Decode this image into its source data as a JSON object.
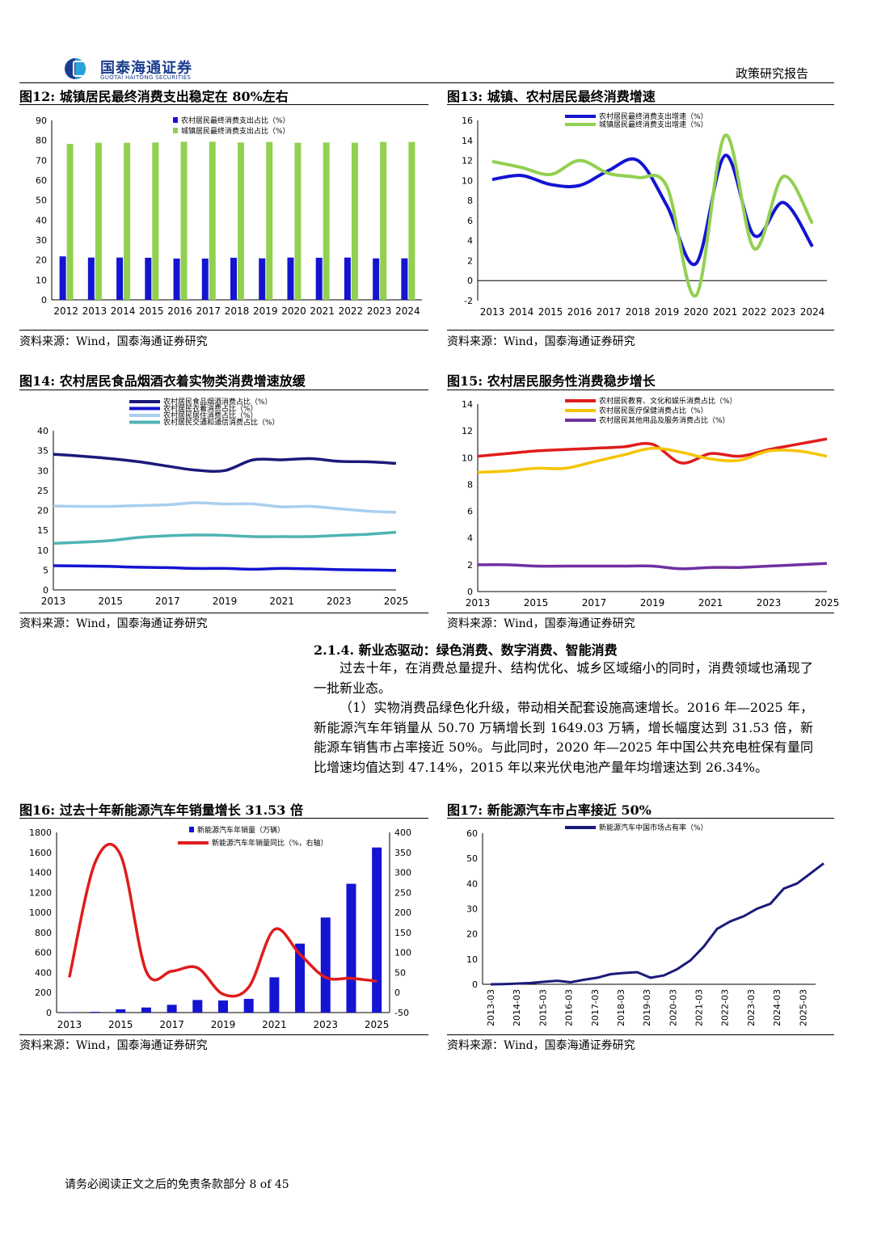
{
  "header": {
    "logo_cn": "国泰海通证券",
    "logo_en": "GUOTAI HAITONG SECURITIES",
    "report_type": "政策研究报告"
  },
  "footer": {
    "text": "请务必阅读正文之后的免责条款部分 8 of 45"
  },
  "figures": {
    "fig12": {
      "title": "图12:  城镇居民最终消费支出稳定在 80%左右",
      "source": "资料来源：Wind，国泰海通证券研究"
    },
    "fig13": {
      "title": "图13:  城镇、农村居民最终消费增速",
      "source": "资料来源：Wind，国泰海通证券研究"
    },
    "fig14": {
      "title": "图14:  农村居民食品烟酒衣着实物类消费增速放缓",
      "source": "资料来源：Wind，国泰海通证券研究"
    },
    "fig15": {
      "title": "图15:  农村居民服务性消费稳步增长",
      "source": "资料来源：Wind，国泰海通证券研究"
    },
    "fig16": {
      "title": "图16:  过去十年新能源汽车年销量增长 31.53 倍",
      "source": "资料来源：Wind，国泰海通证券研究"
    },
    "fig17": {
      "title": "图17:  新能源汽车市占率接近 50%",
      "source": "资料来源：Wind，国泰海通证券研究"
    }
  },
  "section": {
    "heading": "2.1.4.   新业态驱动：绿色消费、数字消费、智能消费",
    "para1": "过去十年，在消费总量提升、结构优化、城乡区域缩小的同时，消费领域也涌现了一批新业态。",
    "para2": "（1）实物消费品绿色化升级，带动相关配套设施高速增长。2016 年—2025 年，新能源汽车年销量从 50.70 万辆增长到 1649.03 万辆，增长幅度达到 31.53 倍，新能源车销售市占率接近 50%。与此同时，2020 年—2025 年中国公共充电桩保有量同比增速均值达到 47.14%，2015 年以来光伏电池产量年均增速达到 26.34%。"
  },
  "colors": {
    "navy": "#1a1a7a",
    "blue": "#1414d2",
    "green": "#92d050",
    "light_blue": "#a9cfee",
    "teal": "#4fb3b3",
    "red": "#e01c1c",
    "yellow": "#f5c400",
    "purple": "#7030a0"
  },
  "chart_data": [
    {
      "id": "fig12",
      "type": "bar",
      "categories": [
        "2012",
        "2013",
        "2014",
        "2015",
        "2016",
        "2017",
        "2018",
        "2019",
        "2020",
        "2021",
        "2022",
        "2023",
        "2024"
      ],
      "series": [
        {
          "name": "农村居民最终消费支出占比（%）",
          "values": [
            21.8,
            21.2,
            21.2,
            21.1,
            20.7,
            20.7,
            21.1,
            20.8,
            21.2,
            21.1,
            21.2,
            20.8,
            20.8
          ]
        },
        {
          "name": "城镇居民最终消费支出占比（%）",
          "values": [
            78.2,
            78.8,
            78.8,
            78.9,
            79.3,
            79.3,
            78.9,
            79.2,
            78.8,
            78.9,
            78.8,
            79.2,
            79.2
          ]
        }
      ],
      "ylim": [
        0,
        90
      ],
      "yticks": [
        0,
        10,
        20,
        30,
        40,
        50,
        60,
        70,
        80,
        90
      ],
      "legend": "top-center"
    },
    {
      "id": "fig13",
      "type": "line",
      "x": [
        "2013",
        "2014",
        "2015",
        "2016",
        "2017",
        "2018",
        "2019",
        "2020",
        "2021",
        "2022",
        "2023",
        "2024"
      ],
      "series": [
        {
          "name": "农村居民最终消费支出增速（%）",
          "values": [
            10.1,
            10.5,
            9.6,
            9.5,
            11.0,
            12.0,
            7.5,
            1.7,
            12.5,
            4.5,
            7.8,
            3.4
          ]
        },
        {
          "name": "城镇居民最终消费支出增速（%）",
          "values": [
            11.9,
            11.3,
            10.6,
            12.0,
            10.7,
            10.3,
            9.4,
            -1.5,
            14.5,
            3.2,
            10.4,
            5.7
          ]
        }
      ],
      "ylim": [
        -2,
        16
      ],
      "yticks": [
        -2,
        0,
        2,
        4,
        6,
        8,
        10,
        12,
        14,
        16
      ],
      "legend": "top-center"
    },
    {
      "id": "fig14",
      "type": "line",
      "x": [
        "2013",
        "2014",
        "2015",
        "2016",
        "2017",
        "2018",
        "2019",
        "2020",
        "2021",
        "2022",
        "2023",
        "2024",
        "2025"
      ],
      "xticks": [
        "2013",
        "2015",
        "2017",
        "2019",
        "2021",
        "2023",
        "2025"
      ],
      "series": [
        {
          "name": "农村居民食品烟酒消费占比（%）",
          "values": [
            34.1,
            33.6,
            33.0,
            32.2,
            31.1,
            30.1,
            30.0,
            32.7,
            32.7,
            33.0,
            32.3,
            32.2,
            31.8
          ]
        },
        {
          "name": "农村居民衣着消费占比（%）",
          "values": [
            6.1,
            6.0,
            5.9,
            5.7,
            5.6,
            5.4,
            5.4,
            5.2,
            5.4,
            5.3,
            5.1,
            5.0,
            4.9
          ]
        },
        {
          "name": "农村居民居住消费占比（%）",
          "values": [
            21.1,
            21.0,
            21.0,
            21.2,
            21.4,
            21.9,
            21.6,
            21.6,
            20.9,
            21.0,
            20.4,
            19.8,
            19.5
          ]
        },
        {
          "name": "农村居民交通和通信消费占比（%）",
          "values": [
            11.7,
            12.0,
            12.4,
            13.2,
            13.6,
            13.8,
            13.7,
            13.4,
            13.4,
            13.4,
            13.7,
            14.0,
            14.5
          ]
        }
      ],
      "ylim": [
        0,
        40
      ],
      "yticks": [
        0,
        5,
        10,
        15,
        20,
        25,
        30,
        35,
        40
      ],
      "legend": "top-center"
    },
    {
      "id": "fig15",
      "type": "line",
      "x": [
        "2013",
        "2014",
        "2015",
        "2016",
        "2017",
        "2018",
        "2019",
        "2020",
        "2021",
        "2022",
        "2023",
        "2024",
        "2025"
      ],
      "xticks": [
        "2013",
        "2015",
        "2017",
        "2019",
        "2021",
        "2023",
        "2025"
      ],
      "series": [
        {
          "name": "农村居民教育、文化和娱乐消费占比（%）",
          "values": [
            10.1,
            10.3,
            10.5,
            10.6,
            10.7,
            10.8,
            11.0,
            9.6,
            10.3,
            10.1,
            10.6,
            11.0,
            11.4
          ]
        },
        {
          "name": "农村居民医疗保健消费占比（%）",
          "values": [
            8.9,
            9.0,
            9.2,
            9.2,
            9.7,
            10.2,
            10.7,
            10.4,
            9.9,
            9.8,
            10.5,
            10.5,
            10.1
          ]
        },
        {
          "name": "农村居民其他用品及服务消费占比（%）",
          "values": [
            2.0,
            2.0,
            1.9,
            1.9,
            1.9,
            1.9,
            1.9,
            1.7,
            1.8,
            1.8,
            1.9,
            2.0,
            2.1
          ]
        }
      ],
      "ylim": [
        0,
        14
      ],
      "yticks": [
        0,
        2,
        4,
        6,
        8,
        10,
        12,
        14
      ],
      "legend": "top-center"
    },
    {
      "id": "fig16",
      "type": "bar",
      "categories": [
        "2013",
        "2014",
        "2015",
        "2016",
        "2017",
        "2018",
        "2019",
        "2020",
        "2021",
        "2022",
        "2023",
        "2024",
        "2025"
      ],
      "xticks": [
        "2013",
        "2015",
        "2017",
        "2019",
        "2021",
        "2023",
        "2025"
      ],
      "series": [
        {
          "name": "新能源汽车年销量（万辆）",
          "type": "bar",
          "axis": "left",
          "values": [
            1.8,
            7.5,
            33.1,
            50.7,
            77.7,
            125.6,
            120.6,
            136.7,
            352.1,
            688.7,
            949.5,
            1286.6,
            1649.0
          ]
        },
        {
          "name": "新能源汽车年销量同比（%，右轴）",
          "type": "line",
          "axis": "right",
          "values": [
            37.9,
            324.0,
            343.0,
            53.0,
            53.3,
            61.7,
            -4.0,
            13.3,
            157.5,
            95.6,
            37.9,
            35.5,
            28.2
          ]
        }
      ],
      "ylim": [
        0,
        1800
      ],
      "yticks": [
        0,
        200,
        400,
        600,
        800,
        1000,
        1200,
        1400,
        1600,
        1800
      ],
      "y2lim": [
        -50,
        400
      ],
      "y2ticks": [
        -50,
        0,
        50,
        100,
        150,
        200,
        250,
        300,
        350,
        400
      ],
      "legend": "top-center"
    },
    {
      "id": "fig17",
      "type": "line",
      "xticks": [
        "2013-03",
        "2014-03",
        "2015-03",
        "2016-03",
        "2017-03",
        "2018-03",
        "2019-03",
        "2020-03",
        "2021-03",
        "2022-03",
        "2023-03",
        "2024-03",
        "2025-03"
      ],
      "series": [
        {
          "name": "新能源汽车中国市场占有率（%）",
          "values": [
            0.0,
            0.1,
            0.3,
            0.5,
            1.0,
            1.4,
            0.8,
            1.8,
            2.6,
            4.0,
            4.5,
            4.8,
            2.6,
            3.5,
            6.0,
            9.5,
            15.0,
            22.0,
            25.0,
            27.0,
            30.0,
            32.0,
            38.0,
            40.0,
            44.0,
            48.0
          ]
        }
      ],
      "ylim": [
        0,
        60
      ],
      "yticks": [
        0,
        10,
        20,
        30,
        40,
        50,
        60
      ],
      "legend": "top-center"
    }
  ]
}
